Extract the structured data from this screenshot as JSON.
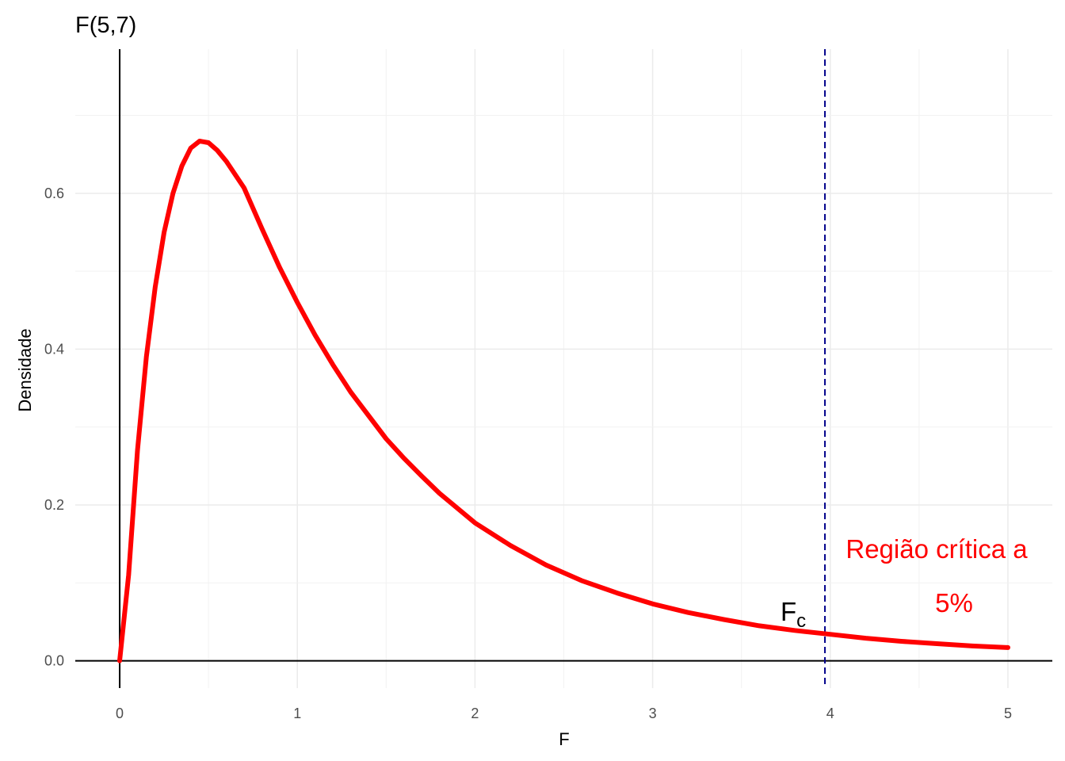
{
  "chart_data": {
    "type": "line",
    "title": "F(5,7)",
    "xlabel": "F",
    "ylabel": "Densidade",
    "xlim": [
      -0.25,
      5.25
    ],
    "ylim": [
      -0.035,
      0.785
    ],
    "x_ticks": [
      0,
      1,
      2,
      3,
      4,
      5
    ],
    "x_tick_labels": [
      "0",
      "1",
      "2",
      "3",
      "4",
      "5"
    ],
    "y_ticks": [
      0.0,
      0.2,
      0.4,
      0.6
    ],
    "y_tick_labels": [
      "0.0",
      "0.2",
      "0.4",
      "0.6"
    ],
    "grid": true,
    "series": [
      {
        "color": "#ff0000",
        "x": [
          0.0,
          0.05,
          0.1,
          0.15,
          0.2,
          0.25,
          0.3,
          0.35,
          0.4,
          0.45,
          0.5,
          0.55,
          0.6,
          0.7,
          0.8,
          0.9,
          1.0,
          1.1,
          1.2,
          1.3,
          1.4,
          1.5,
          1.6,
          1.7,
          1.8,
          1.9,
          2.0,
          2.2,
          2.4,
          2.6,
          2.8,
          3.0,
          3.2,
          3.4,
          3.6,
          3.8,
          4.0,
          4.2,
          4.4,
          4.6,
          4.8,
          5.0
        ],
        "y": [
          0.0,
          0.11,
          0.27,
          0.39,
          0.48,
          0.55,
          0.6,
          0.635,
          0.658,
          0.667,
          0.665,
          0.655,
          0.641,
          0.607,
          0.555,
          0.505,
          0.46,
          0.418,
          0.38,
          0.345,
          0.315,
          0.285,
          0.26,
          0.237,
          0.215,
          0.196,
          0.177,
          0.148,
          0.123,
          0.103,
          0.087,
          0.073,
          0.062,
          0.053,
          0.045,
          0.039,
          0.034,
          0.029,
          0.025,
          0.022,
          0.019,
          0.017
        ]
      }
    ],
    "vline": {
      "x": 3.97,
      "color": "#00008b",
      "style": "dashed"
    },
    "annotations": {
      "critical_line1": "Região crítica a",
      "critical_line2": "5%",
      "fc_main": "F",
      "fc_sub": "c"
    }
  }
}
